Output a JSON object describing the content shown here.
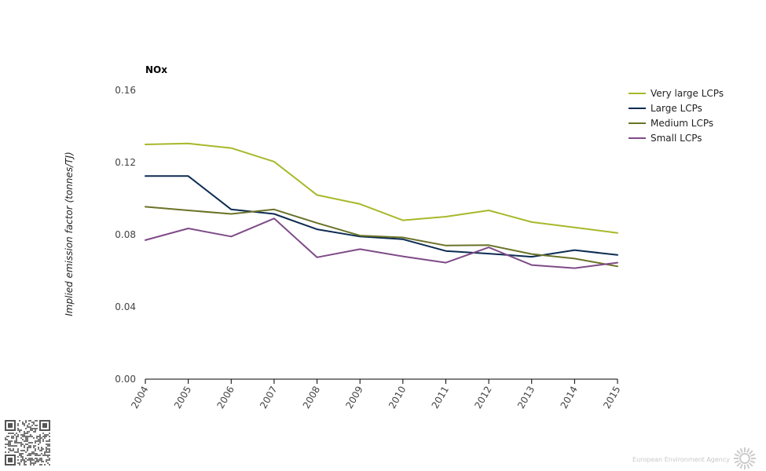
{
  "chart_data": {
    "type": "line",
    "title": "NOx",
    "xlabel": "",
    "ylabel": "Implied emission factor (tonnes/TJ)",
    "ylim": [
      0,
      0.16
    ],
    "yticks": [
      "0.00",
      "0.04",
      "0.08",
      "0.12",
      "0.16"
    ],
    "x": [
      "2004",
      "2005",
      "2006",
      "2007",
      "2008",
      "2009",
      "2010",
      "2011",
      "2012",
      "2013",
      "2014",
      "2015"
    ],
    "grid": false,
    "legend_position": "top-right",
    "series": [
      {
        "name": "Very large LCPs",
        "color": "#a8b82a",
        "values": [
          0.13,
          0.1305,
          0.128,
          0.1205,
          0.102,
          0.097,
          0.088,
          0.09,
          0.0935,
          0.087,
          0.084,
          0.081
        ]
      },
      {
        "name": "Large LCPs",
        "color": "#0b2b52",
        "values": [
          0.1125,
          0.1125,
          0.094,
          0.0915,
          0.083,
          0.079,
          0.0775,
          0.071,
          0.0695,
          0.0678,
          0.0715,
          0.0688
        ]
      },
      {
        "name": "Medium LCPs",
        "color": "#6b7328",
        "values": [
          0.0955,
          0.0935,
          0.0915,
          0.094,
          0.0865,
          0.0795,
          0.0785,
          0.074,
          0.0742,
          0.0693,
          0.0668,
          0.0625
        ]
      },
      {
        "name": "Small LCPs",
        "color": "#7f4b88",
        "values": [
          0.077,
          0.0835,
          0.079,
          0.089,
          0.0675,
          0.072,
          0.068,
          0.0645,
          0.073,
          0.0632,
          0.0615,
          0.0645
        ]
      }
    ]
  },
  "footer": {
    "credit": "European Environment Agency",
    "logo_icon": "eea-sun-logo-icon",
    "qr_icon": "qr-code-icon"
  }
}
